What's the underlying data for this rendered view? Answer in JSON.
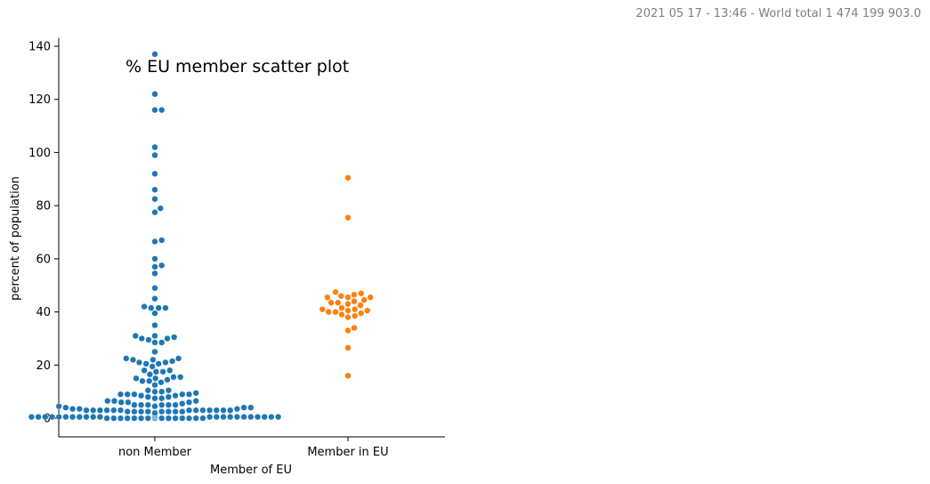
{
  "header_note": "2021 05 17 - 13:46 - World total 1 474 199 903.0",
  "chart_data": {
    "type": "scatter",
    "style": "swarm",
    "title": "% EU member scatter plot",
    "xlabel": "Member of EU",
    "ylabel": "percent of population",
    "categories": [
      "non Member",
      "Member in EU"
    ],
    "ylim": [
      -7,
      143
    ],
    "yticks": [
      0,
      20,
      40,
      60,
      80,
      100,
      120,
      140
    ],
    "grid": false,
    "series": [
      {
        "category": "non Member",
        "color": "#1f77b4",
        "values": [
          137,
          122,
          116,
          116,
          102,
          99,
          92,
          86,
          82.5,
          79,
          77.5,
          67,
          66.5,
          60,
          57.5,
          57,
          54.5,
          49,
          45,
          42,
          41.5,
          41.5,
          41.5,
          39.5,
          35,
          31,
          31,
          30.5,
          30,
          30,
          29.5,
          28.5,
          28.5,
          25,
          22.5,
          22.5,
          22,
          22,
          21.5,
          21,
          21,
          20.5,
          20.5,
          19.5,
          18,
          18,
          17.5,
          17.5,
          16.5,
          15.5,
          15.5,
          15,
          15,
          14.5,
          14,
          14,
          13.5,
          12.5,
          10.5,
          10.5,
          10,
          10,
          9.5,
          9,
          9,
          9,
          9,
          9,
          8.5,
          8.5,
          8,
          8,
          7.5,
          7.5,
          6.5,
          6.5,
          6.5,
          6,
          6,
          6,
          5.5,
          5,
          5,
          5,
          5,
          5,
          5,
          4.5,
          4.5,
          4,
          4,
          4,
          3.5,
          3.5,
          3.5,
          3,
          3,
          3,
          3,
          3,
          3,
          3,
          3,
          3,
          3,
          3,
          3,
          3,
          2.5,
          2.5,
          2.5,
          2.5,
          2.5,
          2.5,
          2.5,
          2.5,
          2,
          2,
          2,
          2,
          2,
          2,
          2,
          2,
          2,
          2,
          1.5,
          1.5,
          1.5,
          1.5,
          1.5,
          1.5,
          1.5,
          1,
          1,
          1,
          1,
          1,
          1,
          1,
          1,
          1,
          1,
          1,
          1,
          1,
          1,
          0.5,
          0.5,
          0.5,
          0.5,
          0.5,
          0.5,
          0.5,
          0.5,
          0.5,
          0.5,
          0.5,
          0.5,
          0.5,
          0.5,
          0.5,
          0.5,
          0.5,
          0.5,
          0.5,
          0.5,
          0.5,
          0.5,
          0.5,
          0.5,
          0.5,
          0.5,
          0.5,
          0,
          0,
          0,
          0,
          0,
          0,
          0,
          0,
          0,
          0,
          0,
          0,
          0,
          0,
          0
        ]
      },
      {
        "category": "Member in EU",
        "color": "#ff7f0e",
        "values": [
          90.5,
          75.5,
          47.5,
          47,
          46.5,
          46,
          45.5,
          45.5,
          45.5,
          44.5,
          44,
          43.5,
          43.5,
          43,
          42.5,
          41.5,
          41,
          41,
          40.5,
          40.5,
          40,
          40,
          39.5,
          39,
          38.5,
          38,
          34,
          33,
          26.5,
          16
        ]
      }
    ]
  }
}
